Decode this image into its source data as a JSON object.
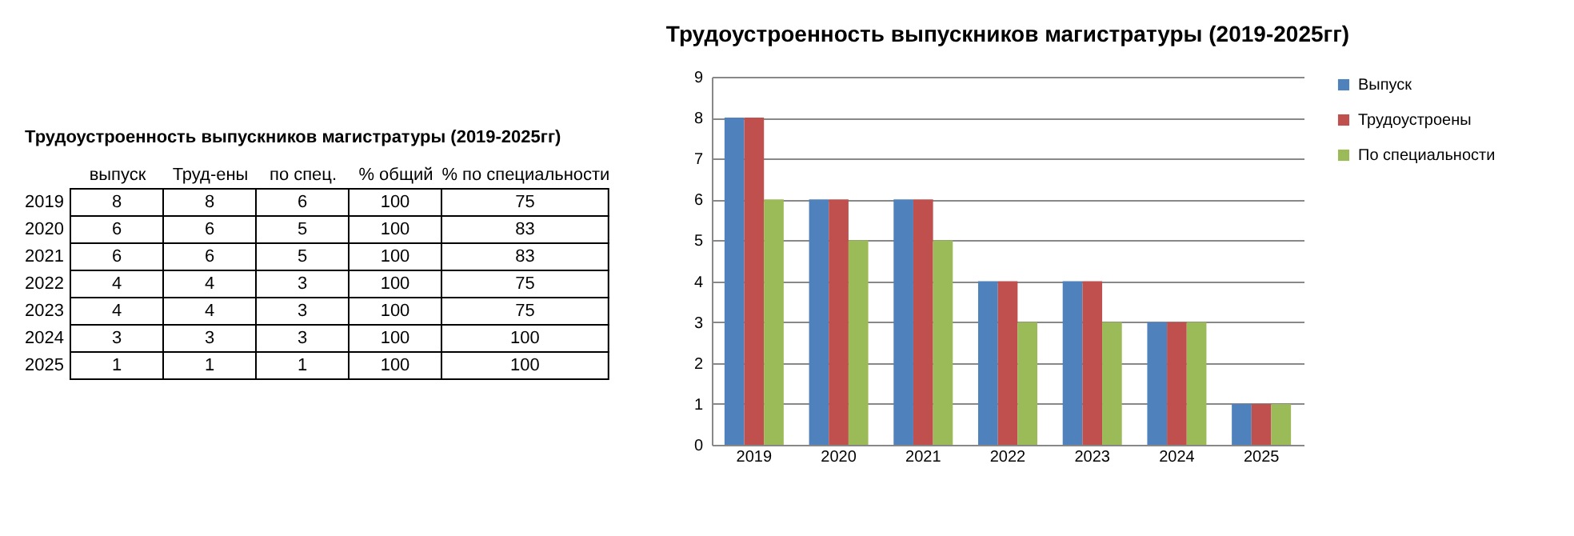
{
  "chart_data": [
    {
      "type": "heatmap",
      "title": "Трудоустроенность выпускников магистратуры (2019-2025гг)",
      "categories": [
        "выпуск",
        "Труд-ены",
        "по спец.",
        "% общий",
        "% по специальности"
      ],
      "y_categories": [
        "2019",
        "2020",
        "2021",
        "2022",
        "2023",
        "2024",
        "2025"
      ],
      "cells": [
        [
          8,
          8,
          6,
          100,
          75
        ],
        [
          6,
          6,
          5,
          100,
          83
        ],
        [
          6,
          6,
          5,
          100,
          83
        ],
        [
          4,
          4,
          3,
          100,
          75
        ],
        [
          4,
          4,
          3,
          100,
          75
        ],
        [
          3,
          3,
          3,
          100,
          100
        ],
        [
          1,
          1,
          1,
          100,
          100
        ]
      ],
      "data_labels": true
    },
    {
      "type": "bar",
      "title": "Трудоустроенность выпускников магистратуры (2019-2025гг)",
      "categories": [
        "2019",
        "2020",
        "2021",
        "2022",
        "2023",
        "2024",
        "2025"
      ],
      "series": [
        {
          "name": "Выпуск",
          "color": "#4f81bd",
          "values": [
            8,
            6,
            6,
            4,
            4,
            3,
            1
          ]
        },
        {
          "name": "Трудоустроены",
          "color": "#c0504d",
          "values": [
            8,
            6,
            6,
            4,
            4,
            3,
            1
          ]
        },
        {
          "name": "По специальности",
          "color": "#9bbb59",
          "values": [
            6,
            5,
            5,
            3,
            3,
            3,
            1
          ]
        }
      ],
      "ylim": [
        0,
        9
      ],
      "yticks": [
        0,
        1,
        2,
        3,
        4,
        5,
        6,
        7,
        8,
        9
      ],
      "grid": "y",
      "legend": "right"
    }
  ]
}
